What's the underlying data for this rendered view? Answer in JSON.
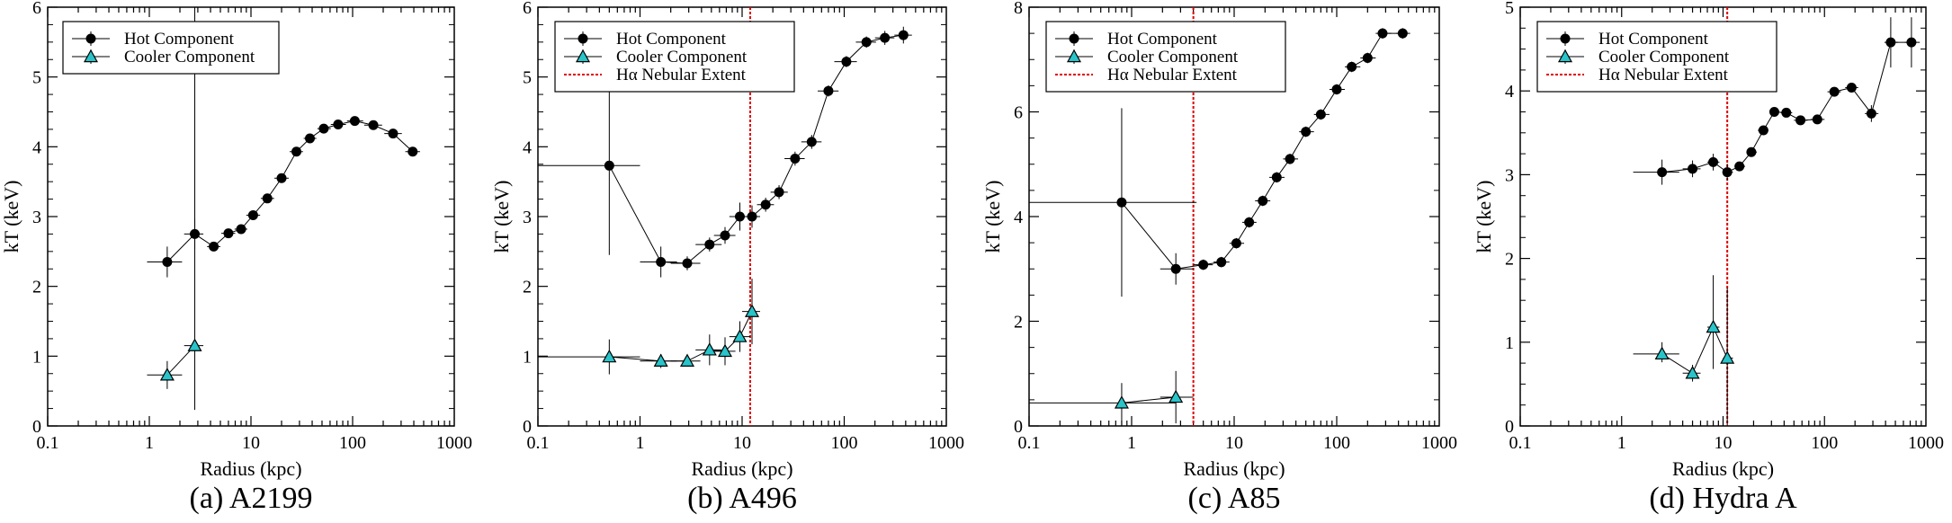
{
  "chart_data": [
    {
      "type": "scatter",
      "xscale": "log",
      "caption": "(a)  A2199",
      "xlabel": "Radius (kpc)",
      "ylabel": "kT (keV)",
      "xlim": [
        0.1,
        1000
      ],
      "ylim": [
        0,
        6
      ],
      "yticks": [
        0,
        1,
        2,
        3,
        4,
        5,
        6
      ],
      "xtick_labels": [
        "0.1",
        "1",
        "10",
        "100",
        "1000"
      ],
      "legend": [
        "Hot Component",
        "Cooler Component"
      ],
      "series": [
        {
          "name": "Hot Component",
          "marker": "circle",
          "x": [
            1.5,
            2.8,
            4.3,
            6.0,
            8.0,
            10.5,
            14.5,
            20.0,
            28.0,
            38.0,
            52.0,
            72.0,
            105.0,
            160.0,
            250.0,
            390.0
          ],
          "y": [
            2.35,
            2.75,
            2.57,
            2.76,
            2.82,
            3.02,
            3.26,
            3.55,
            3.93,
            4.12,
            4.26,
            4.32,
            4.37,
            4.31,
            4.19,
            3.93
          ],
          "xerr_lo": [
            0.55,
            0.6,
            0.6,
            0.9,
            1.1,
            1.5,
            2.0,
            3.0,
            4.0,
            5.0,
            7.0,
            11.0,
            17.0,
            30.0,
            45.0,
            60.0
          ],
          "xerr_hi": [
            0.6,
            0.6,
            0.7,
            1.0,
            1.2,
            1.8,
            2.4,
            3.5,
            4.5,
            6.0,
            9.0,
            14.0,
            22.0,
            35.0,
            55.0,
            70.0
          ],
          "yerr": [
            0.22,
            0.22,
            0.05,
            0.05,
            0.05,
            0.05,
            0.05,
            0.05,
            0.05,
            0.05,
            0.05,
            0.05,
            0.05,
            0.05,
            0.05,
            0.06
          ]
        },
        {
          "name": "Cooler Component",
          "marker": "triangle",
          "x": [
            1.5,
            2.8
          ],
          "y": [
            0.73,
            1.15
          ],
          "xerr_lo": [
            0.55,
            0.6
          ],
          "xerr_hi": [
            0.6,
            0.6
          ],
          "yerr_lo": [
            0.2,
            0.92
          ],
          "yerr_hi": [
            0.2,
            4.85
          ]
        }
      ]
    },
    {
      "type": "scatter",
      "xscale": "log",
      "caption": "(b)  A496",
      "xlabel": "Radius (kpc)",
      "ylabel": "kT (keV)",
      "xlim": [
        0.1,
        1000
      ],
      "ylim": [
        0,
        6
      ],
      "yticks": [
        0,
        1,
        2,
        3,
        4,
        5,
        6
      ],
      "xtick_labels": [
        "0.1",
        "1",
        "10",
        "100",
        "1000"
      ],
      "legend": [
        "Hot Component",
        "Cooler Component",
        "Hα Nebular Extent"
      ],
      "vline": 12,
      "series": [
        {
          "name": "Hot Component",
          "marker": "circle",
          "x": [
            0.5,
            1.6,
            2.9,
            4.8,
            6.8,
            9.5,
            12.5,
            17.0,
            23.0,
            33.0,
            48.0,
            70.0,
            105.0,
            165.0,
            250.0,
            380.0
          ],
          "y": [
            3.73,
            2.35,
            2.33,
            2.6,
            2.73,
            3.0,
            3.0,
            3.17,
            3.35,
            3.83,
            4.07,
            4.8,
            5.22,
            5.5,
            5.56,
            5.6
          ],
          "xerr_lo": [
            0.4,
            0.6,
            0.9,
            1.3,
            1.5,
            2.0,
            2.5,
            3.0,
            4.0,
            7.0,
            10.0,
            15.0,
            25.0,
            35.0,
            50.0,
            70.0
          ],
          "xerr_hi": [
            0.5,
            0.7,
            1.0,
            1.5,
            1.8,
            2.5,
            2.5,
            3.5,
            5.0,
            8.0,
            12.0,
            18.0,
            28.0,
            40.0,
            60.0,
            80.0
          ],
          "yerr": [
            1.28,
            0.22,
            0.1,
            0.1,
            0.12,
            0.2,
            0.16,
            0.1,
            0.1,
            0.1,
            0.1,
            0.08,
            0.08,
            0.08,
            0.1,
            0.12
          ]
        },
        {
          "name": "Cooler Component",
          "marker": "triangle",
          "x": [
            0.5,
            1.6,
            2.9,
            4.8,
            6.8,
            9.5,
            12.5
          ],
          "y": [
            0.99,
            0.93,
            0.93,
            1.09,
            1.07,
            1.28,
            1.64
          ],
          "xerr_lo": [
            0.4,
            0.6,
            0.9,
            1.3,
            1.5,
            2.0,
            2.5
          ],
          "xerr_hi": [
            0.5,
            0.7,
            1.0,
            1.5,
            1.8,
            2.5,
            2.5
          ],
          "yerr": [
            0.25,
            0.1,
            0.06,
            0.22,
            0.2,
            0.22,
            0.47
          ]
        }
      ]
    },
    {
      "type": "scatter",
      "xscale": "log",
      "caption": "(c)  A85",
      "xlabel": "Radius (kpc)",
      "ylabel": "kT (keV)",
      "xlim": [
        0.1,
        1000
      ],
      "ylim": [
        0,
        8
      ],
      "yticks": [
        0,
        2,
        4,
        6,
        8
      ],
      "xtick_labels": [
        "0.1",
        "1",
        "10",
        "100",
        "1000"
      ],
      "legend": [
        "Hot Component",
        "Cooler Component",
        "Hα Nebular Extent"
      ],
      "vline": 4.0,
      "series": [
        {
          "name": "Hot Component",
          "marker": "circle",
          "x": [
            0.8,
            2.7,
            5.0,
            7.5,
            10.5,
            14.0,
            19.0,
            26.0,
            35.0,
            50.0,
            70.0,
            100.0,
            140.0,
            200.0,
            280.0,
            440.0
          ],
          "y": [
            4.27,
            3.0,
            3.08,
            3.13,
            3.49,
            3.89,
            4.3,
            4.75,
            5.1,
            5.62,
            5.95,
            6.43,
            6.86,
            7.03,
            7.5,
            7.5
          ],
          "xerr_lo": [
            0.7,
            0.8,
            1.0,
            1.2,
            1.5,
            2.0,
            3.0,
            4.0,
            5.0,
            7.0,
            10.0,
            15.0,
            20.0,
            30.0,
            40.0,
            60.0
          ],
          "xerr_hi": [
            3.5,
            1.3,
            1.2,
            1.5,
            2.0,
            2.5,
            3.5,
            5.0,
            7.0,
            10.0,
            15.0,
            20.0,
            30.0,
            40.0,
            60.0,
            80.0
          ],
          "yerr": [
            1.8,
            0.3,
            0.1,
            0.1,
            0.1,
            0.1,
            0.1,
            0.1,
            0.1,
            0.1,
            0.1,
            0.1,
            0.1,
            0.1,
            0.1,
            0.1
          ]
        },
        {
          "name": "Cooler Component",
          "marker": "triangle",
          "x": [
            0.8,
            2.7
          ],
          "y": [
            0.44,
            0.55
          ],
          "xerr_lo": [
            0.7,
            0.8
          ],
          "xerr_hi": [
            1.9,
            1.3
          ],
          "yerr": [
            0.38,
            0.5
          ]
        }
      ]
    },
    {
      "type": "scatter",
      "xscale": "log",
      "caption": "(d)  Hydra A",
      "xlabel": "Radius (kpc)",
      "ylabel": "kT (keV)",
      "xlim": [
        0.1,
        1000
      ],
      "ylim": [
        0,
        5
      ],
      "yticks": [
        0,
        1,
        2,
        3,
        4,
        5
      ],
      "xtick_labels": [
        "0.1",
        "1",
        "10",
        "100",
        "1000"
      ],
      "legend": [
        "Hot Component",
        "Cooler Component",
        "Hα Nebular Extent"
      ],
      "vline": 11,
      "series": [
        {
          "name": "Hot Component",
          "marker": "circle",
          "x": [
            2.5,
            5.0,
            8.0,
            11.0,
            14.5,
            19.0,
            25.0,
            32.0,
            42.0,
            58.0,
            85.0,
            125.0,
            185.0,
            290.0,
            450.0,
            720.0
          ],
          "y": [
            3.03,
            3.07,
            3.15,
            3.03,
            3.1,
            3.27,
            3.53,
            3.75,
            3.74,
            3.65,
            3.66,
            3.99,
            4.04,
            3.73,
            4.58,
            4.58
          ],
          "xerr_lo": [
            1.2,
            1.0,
            1.0,
            1.0,
            1.5,
            2.0,
            3.0,
            3.0,
            5.0,
            8.0,
            12.0,
            18.0,
            25.0,
            40.0,
            60.0,
            100.0
          ],
          "xerr_hi": [
            1.2,
            1.0,
            1.2,
            1.5,
            2.0,
            2.5,
            3.0,
            4.0,
            6.0,
            10.0,
            15.0,
            20.0,
            30.0,
            50.0,
            80.0,
            150.0
          ],
          "yerr": [
            0.15,
            0.1,
            0.1,
            0.1,
            0.05,
            0.05,
            0.05,
            0.05,
            0.05,
            0.05,
            0.05,
            0.05,
            0.05,
            0.1,
            0.3,
            0.3
          ]
        },
        {
          "name": "Cooler Component",
          "marker": "triangle",
          "x": [
            2.5,
            5.0,
            8.0,
            11.0
          ],
          "y": [
            0.86,
            0.63,
            1.18,
            0.81
          ],
          "xerr_lo": [
            1.2,
            1.0,
            1.0,
            1.0
          ],
          "xerr_hi": [
            1.2,
            1.0,
            1.2,
            1.5
          ],
          "yerr_lo": [
            0.1,
            0.1,
            0.5,
            0.81
          ],
          "yerr_hi": [
            0.14,
            0.1,
            0.62,
            0.84
          ]
        }
      ]
    }
  ]
}
